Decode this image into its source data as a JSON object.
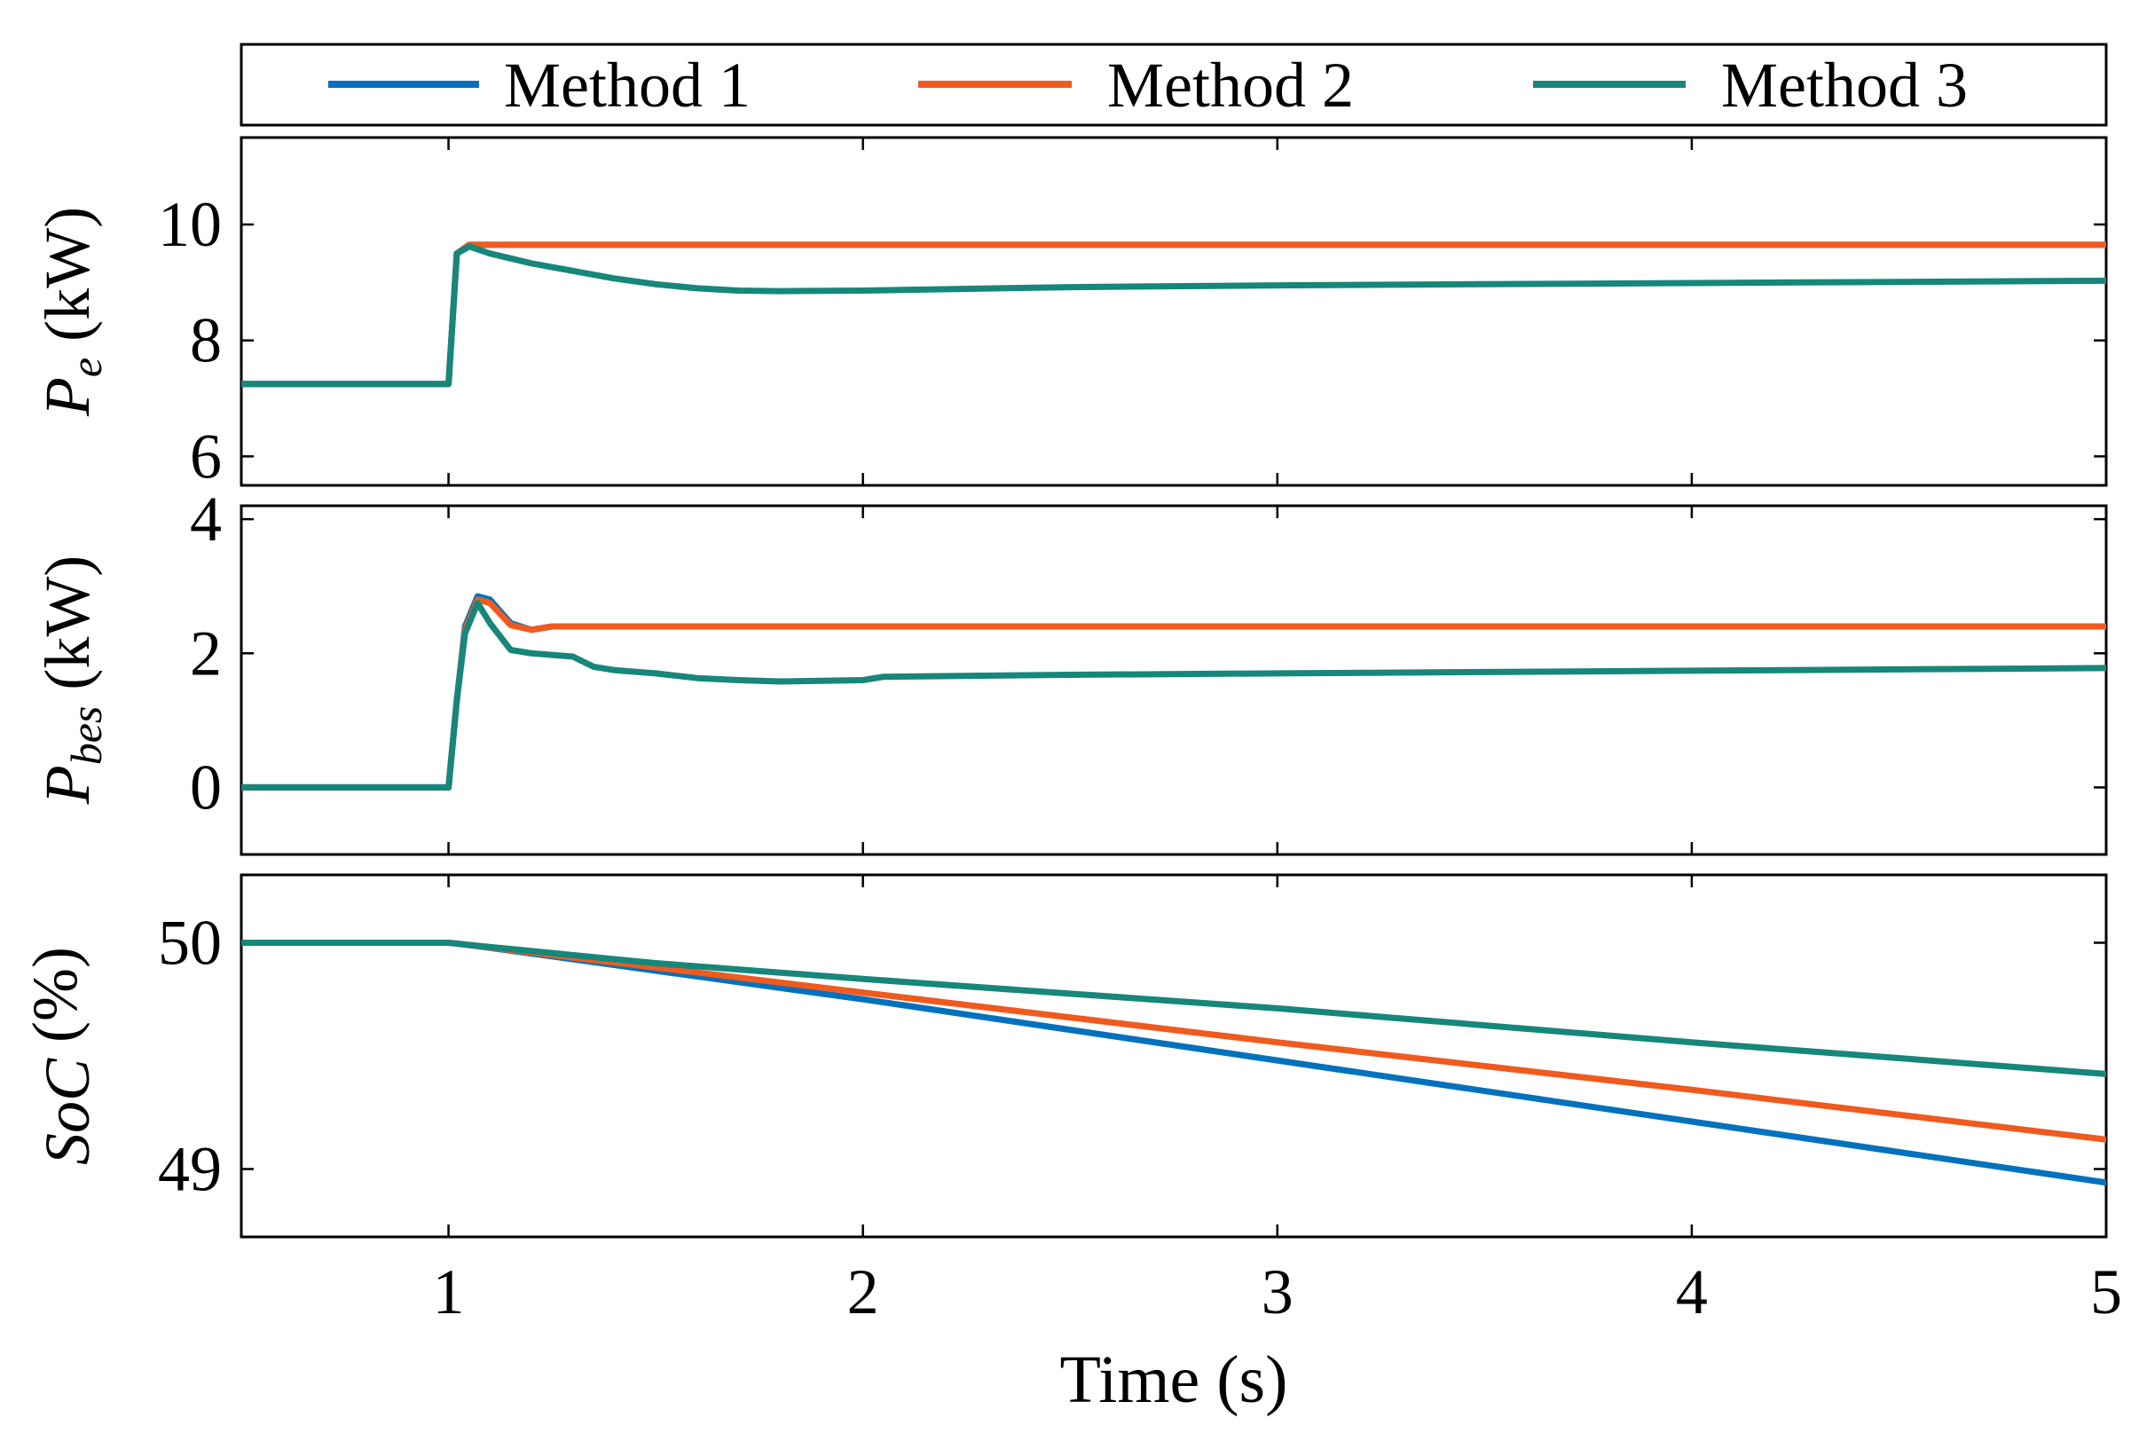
{
  "chart_data": {
    "type": "line",
    "x_label": "Time (s)",
    "x_range": [
      0.5,
      5
    ],
    "x_ticks": [
      "1",
      "2",
      "3",
      "4",
      "5"
    ],
    "legend": [
      {
        "name": "Method 1",
        "color": "#0072BD"
      },
      {
        "name": "Method 2",
        "color": "#F05A1E"
      },
      {
        "name": "Method 3",
        "color": "#16877A"
      }
    ],
    "panels": [
      {
        "id": "pe",
        "ylabel_main": "P",
        "ylabel_sub": "e",
        "ylabel_unit": " (kW)",
        "y_range": [
          5.5,
          11.5
        ],
        "y_ticks": [
          "6",
          "8",
          "10"
        ],
        "series": [
          {
            "name": "Method 1",
            "x": [
              0.5,
              0.995,
              1.0,
              1.02,
              1.05,
              5.0
            ],
            "y": [
              7.25,
              7.25,
              7.25,
              9.5,
              9.65,
              9.65
            ]
          },
          {
            "name": "Method 2",
            "x": [
              0.5,
              0.995,
              1.0,
              1.02,
              1.05,
              5.0
            ],
            "y": [
              7.25,
              7.25,
              7.25,
              9.5,
              9.65,
              9.65
            ]
          },
          {
            "name": "Method 3",
            "x": [
              0.5,
              0.995,
              1.0,
              1.02,
              1.05,
              1.1,
              1.2,
              1.3,
              1.4,
              1.5,
              1.6,
              1.7,
              1.8,
              2.0,
              2.5,
              3.0,
              3.5,
              4.0,
              4.5,
              5.0
            ],
            "y": [
              7.25,
              7.25,
              7.25,
              9.5,
              9.62,
              9.5,
              9.33,
              9.2,
              9.07,
              8.97,
              8.9,
              8.86,
              8.85,
              8.86,
              8.92,
              8.95,
              8.97,
              8.99,
              9.01,
              9.03
            ]
          }
        ]
      },
      {
        "id": "pbes",
        "ylabel_main": "P",
        "ylabel_sub": "bes",
        "ylabel_unit": " (kW)",
        "y_range": [
          -1.0,
          4.2
        ],
        "y_ticks": [
          "0",
          "2",
          "4"
        ],
        "series": [
          {
            "name": "Method 1",
            "x": [
              0.5,
              0.8,
              1.0,
              1.02,
              1.04,
              1.07,
              1.1,
              1.15,
              1.2,
              1.25,
              1.5,
              2.0,
              3.0,
              4.0,
              5.0
            ],
            "y": [
              0.0,
              0.0,
              0.0,
              1.3,
              2.4,
              2.85,
              2.8,
              2.45,
              2.35,
              2.4,
              2.4,
              2.4,
              2.4,
              2.4,
              2.4
            ]
          },
          {
            "name": "Method 2",
            "x": [
              0.5,
              0.8,
              1.0,
              1.02,
              1.04,
              1.07,
              1.1,
              1.15,
              1.2,
              1.25,
              1.5,
              2.0,
              3.0,
              4.0,
              5.0
            ],
            "y": [
              0.0,
              0.0,
              0.0,
              1.3,
              2.35,
              2.8,
              2.75,
              2.42,
              2.35,
              2.4,
              2.4,
              2.4,
              2.4,
              2.4,
              2.4
            ]
          },
          {
            "name": "Method 3",
            "x": [
              0.5,
              0.8,
              1.0,
              1.02,
              1.04,
              1.07,
              1.1,
              1.15,
              1.2,
              1.3,
              1.35,
              1.4,
              1.5,
              1.6,
              1.7,
              1.8,
              2.0,
              2.05,
              2.5,
              3.0,
              3.5,
              4.0,
              4.5,
              5.0
            ],
            "y": [
              0.0,
              0.0,
              0.0,
              1.3,
              2.3,
              2.75,
              2.45,
              2.05,
              2.0,
              1.95,
              1.8,
              1.75,
              1.7,
              1.63,
              1.6,
              1.58,
              1.6,
              1.65,
              1.68,
              1.7,
              1.72,
              1.74,
              1.76,
              1.78
            ]
          }
        ]
      },
      {
        "id": "soc",
        "ylabel_main": "SoC",
        "ylabel_sub": "",
        "ylabel_unit": " (%)",
        "y_range": [
          48.7,
          50.3
        ],
        "y_ticks": [
          "49",
          "50"
        ],
        "series": [
          {
            "name": "Method 1",
            "x": [
              0.5,
              1.0,
              1.05,
              2.0,
              3.0,
              4.0,
              5.0
            ],
            "y": [
              50.0,
              50.0,
              49.99,
              49.75,
              49.48,
              49.21,
              48.94
            ]
          },
          {
            "name": "Method 2",
            "x": [
              0.5,
              1.0,
              1.05,
              2.0,
              3.0,
              4.0,
              5.0
            ],
            "y": [
              50.0,
              50.0,
              49.99,
              49.78,
              49.56,
              49.35,
              49.13
            ]
          },
          {
            "name": "Method 3",
            "x": [
              0.5,
              1.0,
              1.05,
              1.5,
              2.0,
              3.0,
              4.0,
              5.0
            ],
            "y": [
              50.0,
              50.0,
              49.99,
              49.91,
              49.84,
              49.71,
              49.56,
              49.42
            ]
          }
        ]
      }
    ]
  }
}
